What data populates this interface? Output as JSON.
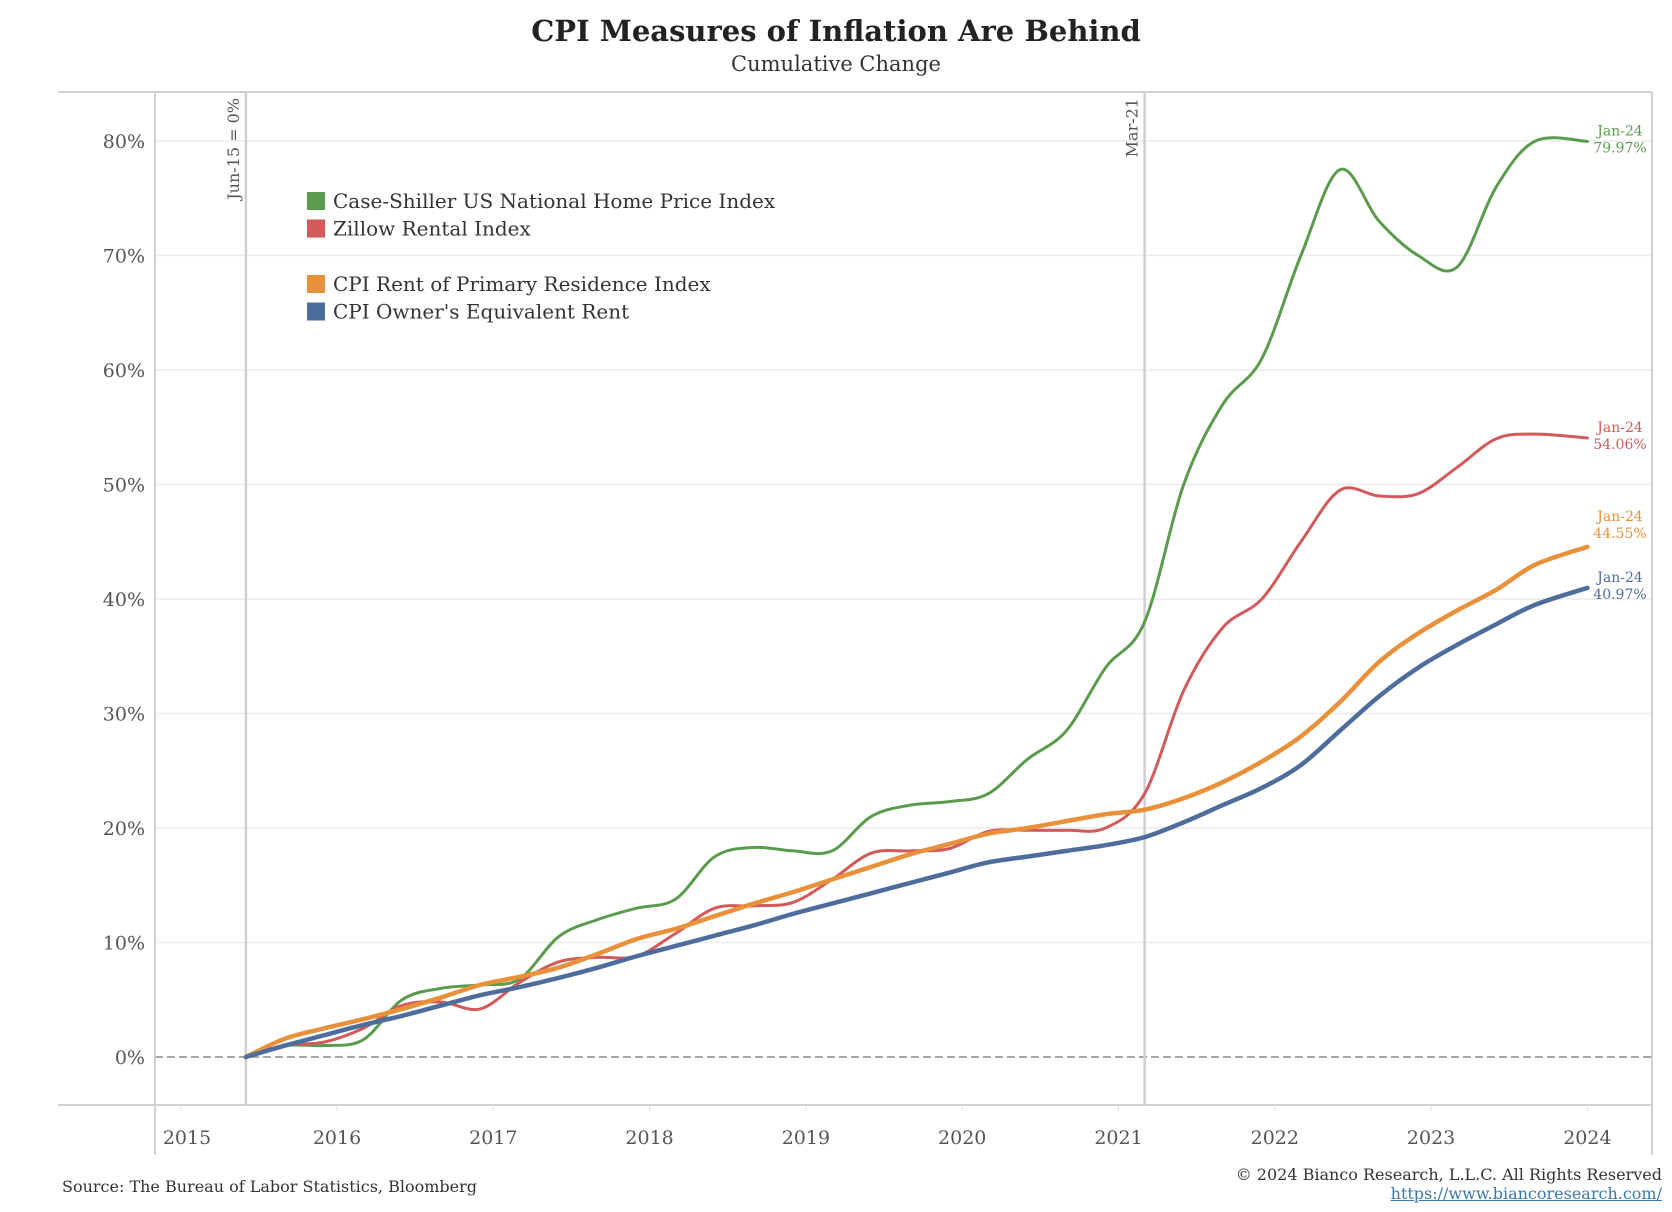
{
  "chart_data": {
    "type": "line",
    "title": "CPI Measures of Inflation Are Behind",
    "subtitle": "Cumulative Change",
    "xlabel": "",
    "ylabel": "",
    "xlim": [
      2014.85,
      2024.45
    ],
    "ylim": [
      -4.5,
      84
    ],
    "y_ticks": [
      0,
      10,
      20,
      30,
      40,
      50,
      60,
      70,
      80
    ],
    "y_tick_labels": [
      "0%",
      "10%",
      "20%",
      "30%",
      "40%",
      "50%",
      "60%",
      "70%",
      "80%"
    ],
    "x_ticks": [
      2015,
      2016,
      2017,
      2018,
      2019,
      2020,
      2021,
      2022,
      2023,
      2024
    ],
    "x_tick_labels": [
      "2015",
      "2016",
      "2017",
      "2018",
      "2019",
      "2020",
      "2021",
      "2022",
      "2023",
      "2024"
    ],
    "grid": true,
    "reference_lines": [
      {
        "x": 2015.417,
        "label": "Jun-15 = 0%"
      },
      {
        "x": 2021.167,
        "label": "Mar-21"
      }
    ],
    "zero_line": {
      "y": 0,
      "style": "dashed"
    },
    "legend": {
      "placement": "top-left",
      "groups": [
        [
          "Case-Shiller US National Home Price Index",
          "Zillow Rental Index"
        ],
        [
          "CPI Rent of Primary Residence Index",
          "CPI Owner's Equivalent Rent"
        ]
      ]
    },
    "x": [
      2015.417,
      2015.667,
      2015.917,
      2016.167,
      2016.417,
      2016.667,
      2016.917,
      2017.167,
      2017.417,
      2017.667,
      2017.917,
      2018.167,
      2018.417,
      2018.667,
      2018.917,
      2019.167,
      2019.417,
      2019.667,
      2019.917,
      2020.167,
      2020.417,
      2020.667,
      2020.917,
      2021.167,
      2021.417,
      2021.667,
      2021.917,
      2022.167,
      2022.417,
      2022.667,
      2022.917,
      2023.167,
      2023.417,
      2023.667,
      2024.0
    ],
    "series": [
      {
        "name": "Case-Shiller US National Home Price Index",
        "color": "#5b9b4d",
        "values": [
          0,
          1.0,
          1.0,
          1.5,
          5.0,
          6.0,
          6.3,
          6.8,
          10.5,
          12.0,
          13.0,
          13.8,
          17.5,
          18.3,
          18.0,
          18.0,
          21.0,
          22.0,
          22.3,
          23.0,
          26.0,
          28.5,
          34.0,
          38.0,
          50.0,
          57.0,
          61.0,
          70.0,
          77.5,
          73.0,
          70.0,
          69.0,
          76.0,
          80.0,
          79.97
        ],
        "end_label": {
          "date": "Jan-24",
          "value": "79.97%"
        }
      },
      {
        "name": "Zillow Rental Index",
        "color": "#d25a5a",
        "values": [
          0,
          1.0,
          1.3,
          2.5,
          4.5,
          4.8,
          4.2,
          6.5,
          8.3,
          8.7,
          8.8,
          10.8,
          13.0,
          13.2,
          13.5,
          15.5,
          17.8,
          18.0,
          18.2,
          19.7,
          19.8,
          19.8,
          20.0,
          23.0,
          32.0,
          37.5,
          40.0,
          45.0,
          49.5,
          49.0,
          49.2,
          51.5,
          54.0,
          54.4,
          54.06
        ],
        "end_label": {
          "date": "Jan-24",
          "value": "54.06%"
        }
      },
      {
        "name": "CPI Rent of Primary Residence Index",
        "color": "#e8913a",
        "values": [
          0,
          1.6,
          2.5,
          3.3,
          4.2,
          5.2,
          6.3,
          7.0,
          7.8,
          9.0,
          10.3,
          11.2,
          12.3,
          13.4,
          14.4,
          15.5,
          16.6,
          17.7,
          18.6,
          19.5,
          20.0,
          20.6,
          21.2,
          21.6,
          22.6,
          24.0,
          25.8,
          28.0,
          31.0,
          34.5,
          37.0,
          39.0,
          40.8,
          43.0,
          44.55
        ],
        "end_label": {
          "date": "Jan-24",
          "value": "44.55%"
        }
      },
      {
        "name": "CPI Owner's Equivalent Rent",
        "color": "#4e6d9c",
        "values": [
          0,
          1.0,
          1.9,
          2.8,
          3.6,
          4.5,
          5.4,
          6.1,
          6.9,
          7.8,
          8.8,
          9.7,
          10.6,
          11.5,
          12.5,
          13.4,
          14.3,
          15.2,
          16.1,
          17.0,
          17.5,
          18.0,
          18.5,
          19.2,
          20.5,
          22.0,
          23.5,
          25.5,
          28.5,
          31.5,
          34.0,
          36.0,
          37.8,
          39.5,
          40.97
        ],
        "end_label": {
          "date": "Jan-24",
          "value": "40.97%"
        }
      }
    ]
  },
  "footer": {
    "source": "Source: The Bureau of Labor Statistics, Bloomberg",
    "copyright": "© 2024 Bianco Research, L.L.C. All Rights Reserved",
    "url": "https://www.biancoresearch.com/"
  }
}
